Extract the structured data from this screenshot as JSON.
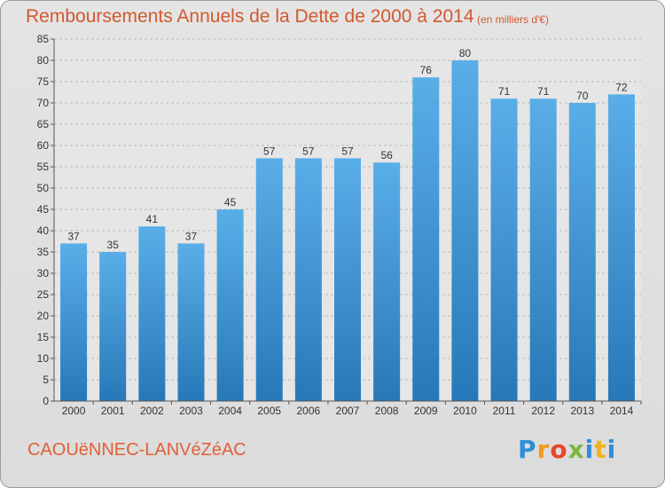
{
  "page": {
    "title": "Remboursements Annuels de la Dette de 2000 à 2014",
    "subtitle": "(en milliers d'€)",
    "town": "CAOUëNNEC-LANVéZéAC",
    "logo_letters": [
      "P",
      "r",
      "o",
      "x",
      "i",
      "t",
      "i"
    ],
    "logo_colors": [
      "#2f8fd8",
      "#f39a1e",
      "#e8452c",
      "#7ab73c",
      "#2f8fd8",
      "#f3b21e",
      "#2f8fd8"
    ]
  },
  "chart_data": {
    "type": "bar",
    "title": "Remboursements Annuels de la Dette de 2000 à 2014",
    "subtitle": "(en milliers d'€)",
    "categories": [
      "2000",
      "2001",
      "2002",
      "2003",
      "2004",
      "2005",
      "2006",
      "2007",
      "2008",
      "2009",
      "2010",
      "2011",
      "2012",
      "2013",
      "2014"
    ],
    "values": [
      37,
      35,
      41,
      37,
      45,
      57,
      57,
      57,
      56,
      76,
      80,
      71,
      71,
      70,
      72
    ],
    "ylim": [
      0,
      85
    ],
    "yticks": [
      0,
      5,
      10,
      15,
      20,
      25,
      30,
      35,
      40,
      45,
      50,
      55,
      60,
      65,
      70,
      75,
      80,
      85
    ],
    "grid": true,
    "bar_color_top": "#5aaee8",
    "bar_color_bottom": "#2778b8"
  }
}
